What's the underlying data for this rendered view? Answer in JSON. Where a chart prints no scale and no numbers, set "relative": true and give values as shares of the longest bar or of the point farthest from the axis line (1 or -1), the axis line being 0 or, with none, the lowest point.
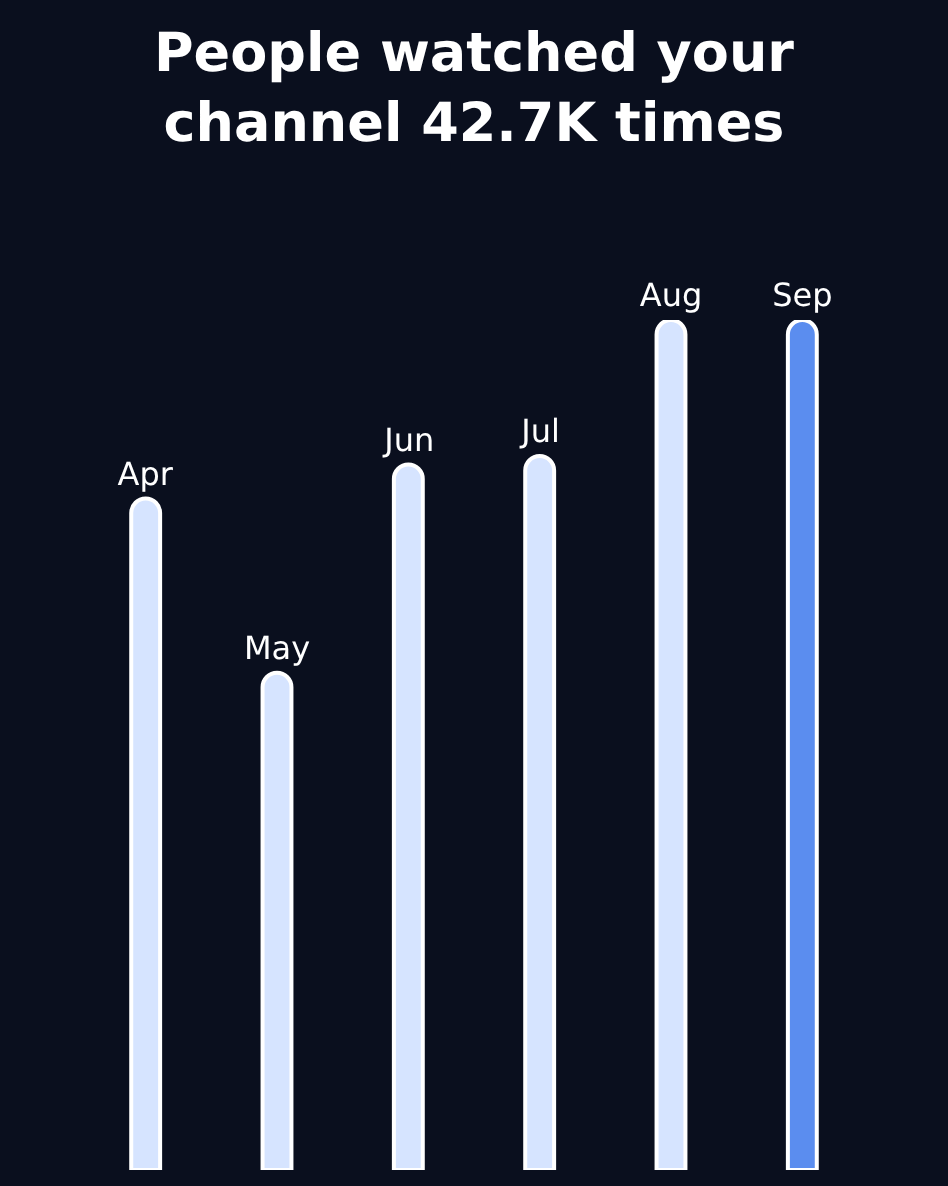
{
  "chart_data": {
    "type": "bar",
    "title": "People watched your\nchannel 42.7K times",
    "categories": [
      "Apr",
      "May",
      "Jun",
      "Jul",
      "Aug",
      "Sep"
    ],
    "values": [
      0.79,
      0.585,
      0.83,
      0.84,
      1,
      1
    ],
    "colors": [
      "#d6e4ff",
      "#d6e4ff",
      "#d6e4ff",
      "#d6e4ff",
      "#d6e4ff",
      "#5b8def"
    ],
    "relative": true,
    "grid": false
  }
}
